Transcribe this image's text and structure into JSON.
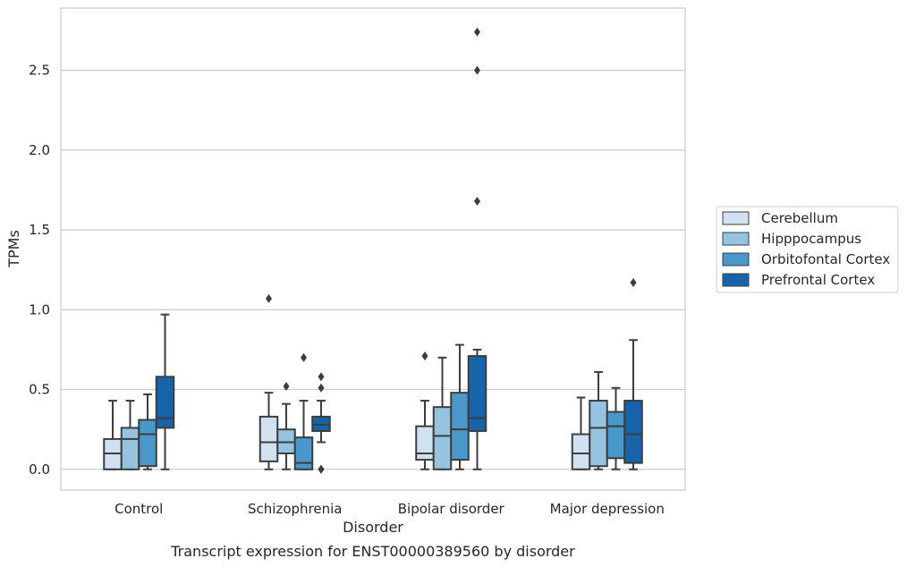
{
  "chart_data": {
    "type": "box",
    "title": "",
    "caption": "Transcript expression for ENST00000389560 by disorder",
    "xlabel": "Disorder",
    "ylabel": "TPMs",
    "ylim": [
      -0.13,
      2.89
    ],
    "yticks": [
      "0.0",
      "0.5",
      "1.0",
      "1.5",
      "2.0",
      "2.5"
    ],
    "grid": "horizontal",
    "legend_position": "right",
    "categories": [
      "Control",
      "Schizophrenia",
      "Bipolar disorder",
      "Major depression"
    ],
    "series": [
      {
        "name": "Cerebellum",
        "color": "#d0e1f2",
        "boxes": [
          {
            "whislo": 0.0,
            "q1": 0.0,
            "med": 0.1,
            "q3": 0.19,
            "whishi": 0.43,
            "fliers": []
          },
          {
            "whislo": 0.0,
            "q1": 0.05,
            "med": 0.17,
            "q3": 0.33,
            "whishi": 0.48,
            "fliers": [
              1.07
            ]
          },
          {
            "whislo": 0.0,
            "q1": 0.06,
            "med": 0.1,
            "q3": 0.27,
            "whishi": 0.43,
            "fliers": [
              0.71
            ]
          },
          {
            "whislo": 0.0,
            "q1": 0.0,
            "med": 0.1,
            "q3": 0.22,
            "whishi": 0.45,
            "fliers": []
          }
        ]
      },
      {
        "name": "Hipppocampus",
        "color": "#94c4df",
        "boxes": [
          {
            "whislo": 0.0,
            "q1": 0.0,
            "med": 0.19,
            "q3": 0.26,
            "whishi": 0.43,
            "fliers": []
          },
          {
            "whislo": 0.0,
            "q1": 0.1,
            "med": 0.17,
            "q3": 0.25,
            "whishi": 0.41,
            "fliers": [
              0.52
            ]
          },
          {
            "whislo": 0.0,
            "q1": 0.0,
            "med": 0.21,
            "q3": 0.39,
            "whishi": 0.7,
            "fliers": []
          },
          {
            "whislo": 0.0,
            "q1": 0.02,
            "med": 0.26,
            "q3": 0.43,
            "whishi": 0.61,
            "fliers": []
          }
        ]
      },
      {
        "name": "Orbitofontal Cortex",
        "color": "#4a98c9",
        "boxes": [
          {
            "whislo": 0.0,
            "q1": 0.02,
            "med": 0.22,
            "q3": 0.31,
            "whishi": 0.47,
            "fliers": []
          },
          {
            "whislo": 0.0,
            "q1": 0.0,
            "med": 0.04,
            "q3": 0.2,
            "whishi": 0.43,
            "fliers": [
              0.7
            ]
          },
          {
            "whislo": 0.0,
            "q1": 0.06,
            "med": 0.25,
            "q3": 0.48,
            "whishi": 0.78,
            "fliers": []
          },
          {
            "whislo": 0.0,
            "q1": 0.07,
            "med": 0.27,
            "q3": 0.36,
            "whishi": 0.51,
            "fliers": []
          }
        ]
      },
      {
        "name": "Prefrontal Cortex",
        "color": "#1764ab",
        "boxes": [
          {
            "whislo": 0.0,
            "q1": 0.26,
            "med": 0.32,
            "q3": 0.58,
            "whishi": 0.97,
            "fliers": []
          },
          {
            "whislo": 0.17,
            "q1": 0.24,
            "med": 0.28,
            "q3": 0.33,
            "whishi": 0.43,
            "fliers": [
              0.58,
              0.51,
              0.0,
              0.0
            ]
          },
          {
            "whislo": 0.0,
            "q1": 0.24,
            "med": 0.32,
            "q3": 0.71,
            "whishi": 0.75,
            "fliers": [
              2.74,
              2.5,
              1.68
            ]
          },
          {
            "whislo": 0.0,
            "q1": 0.04,
            "med": 0.22,
            "q3": 0.43,
            "whishi": 0.81,
            "fliers": [
              1.17
            ]
          }
        ]
      }
    ]
  }
}
